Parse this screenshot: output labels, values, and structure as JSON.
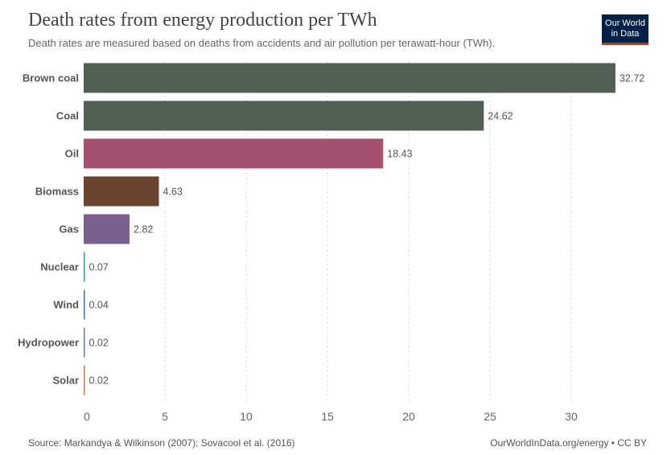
{
  "header": {
    "title": "Death rates from energy production per TWh",
    "subtitle": "Death rates are measured based on deaths from accidents and air pollution per terawatt-hour (TWh).",
    "logo_line1": "Our World",
    "logo_line2": "in Data"
  },
  "footer": {
    "source": "Source: Markandya & Wilkinson (2007); Sovacool et al. (2016)",
    "credit": "OurWorldInData.org/energy • CC BY"
  },
  "chart_data": {
    "type": "bar",
    "orientation": "horizontal",
    "title": "Death rates from energy production per TWh",
    "subtitle": "Death rates are measured based on deaths from accidents and air pollution per terawatt-hour (TWh).",
    "categories": [
      "Brown coal",
      "Coal",
      "Oil",
      "Biomass",
      "Gas",
      "Nuclear",
      "Wind",
      "Hydropower",
      "Solar"
    ],
    "values": [
      32.72,
      24.62,
      18.43,
      4.63,
      2.82,
      0.07,
      0.04,
      0.02,
      0.02
    ],
    "value_labels": [
      "32.72",
      "24.62",
      "18.43",
      "4.63",
      "2.82",
      "0.07",
      "0.04",
      "0.02",
      "0.02"
    ],
    "colors": [
      "#525f55",
      "#525f55",
      "#a5506f",
      "#6b4430",
      "#7a5e8c",
      "#3a9b8a",
      "#3e6fa8",
      "#5a7fa8",
      "#c47a5a"
    ],
    "xticks": [
      0,
      5,
      10,
      15,
      20,
      25,
      30
    ],
    "xlim": [
      0,
      35
    ],
    "grid": "vertical-dashed",
    "xlabel": "",
    "ylabel": ""
  }
}
